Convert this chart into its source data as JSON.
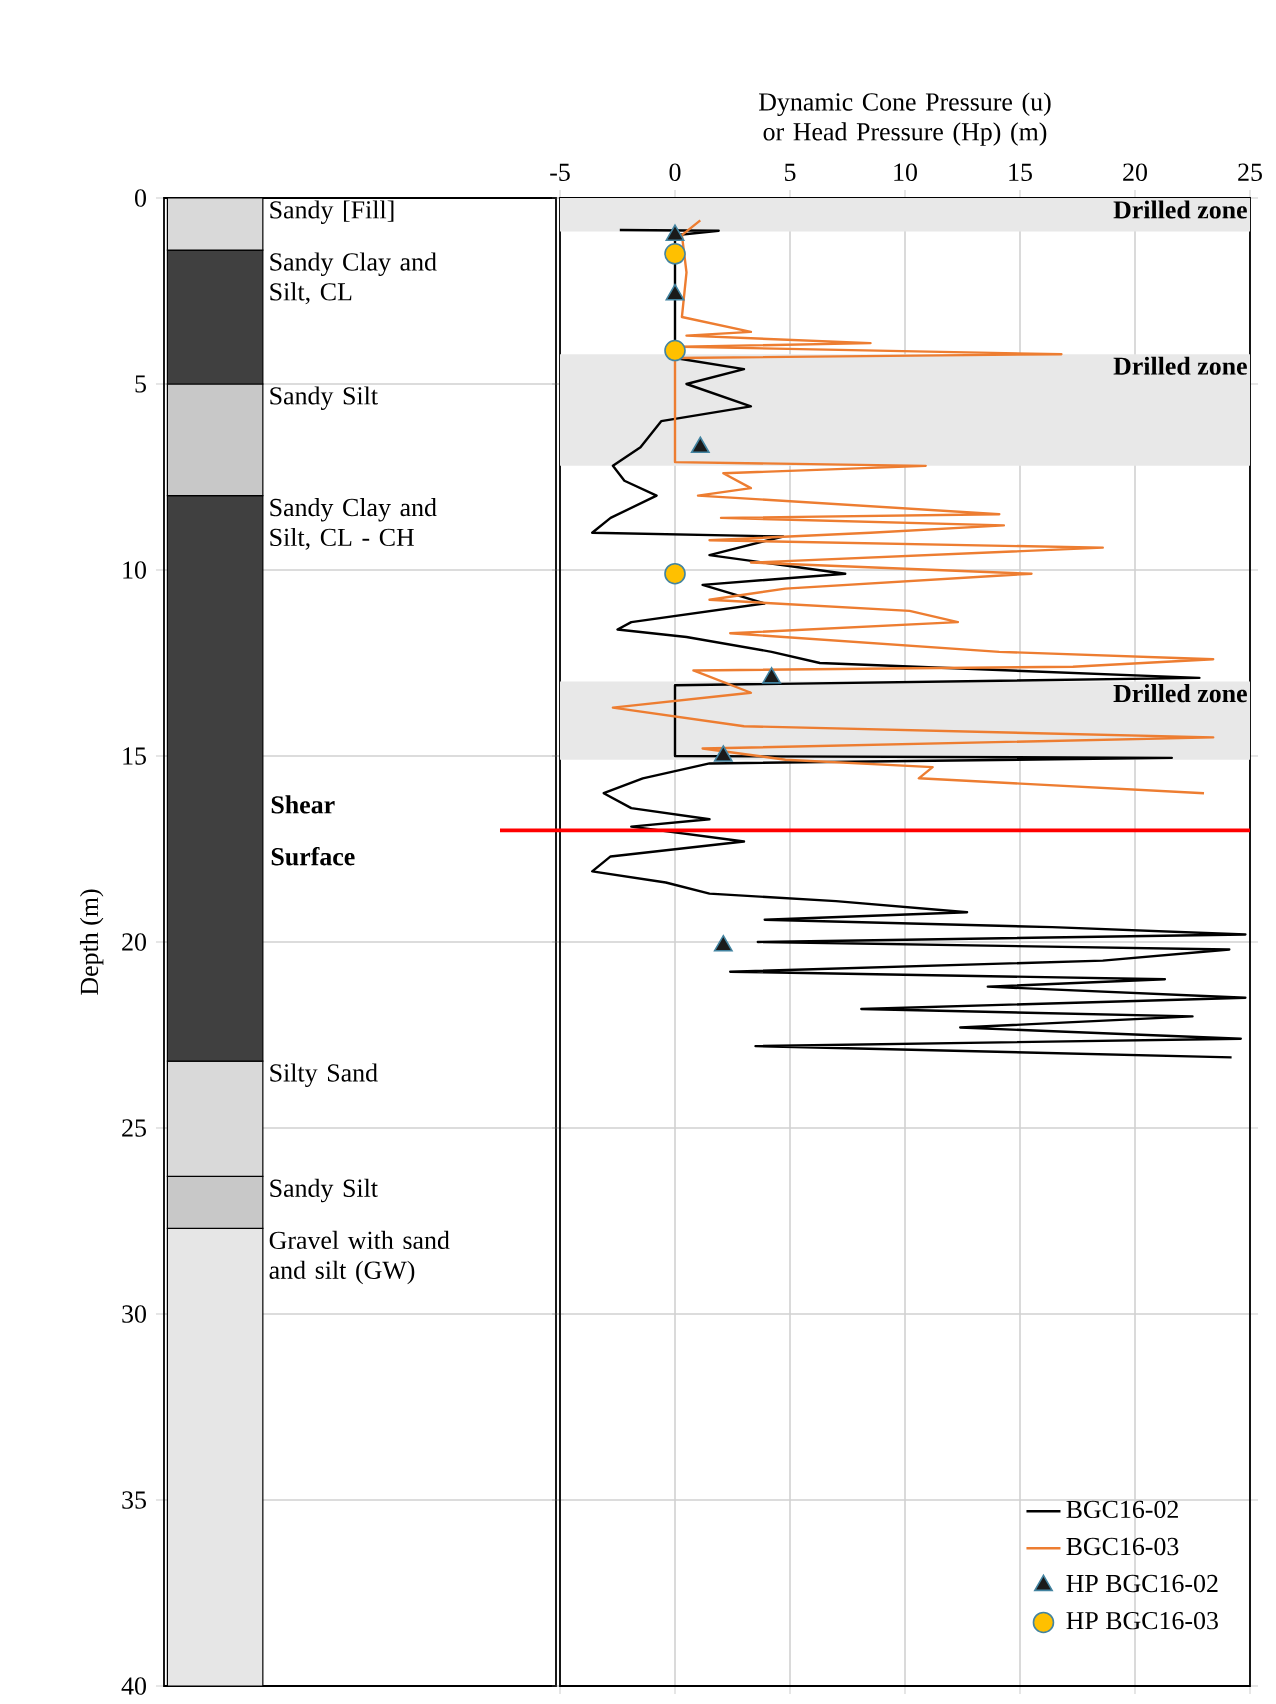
{
  "chart_data": [
    {
      "type": "bar",
      "stacked": true,
      "categories": [
        null
      ],
      "ylabel": "Depth (m)",
      "ylim": [
        40,
        0
      ],
      "yticks": [
        0,
        5,
        10,
        15,
        20,
        25,
        30,
        35,
        40
      ],
      "grid": "y",
      "tick_labels": "y",
      "series": [
        {
          "name": "Sandy [Fill]",
          "color": "#d9d9d9",
          "values": [
            1.4
          ]
        },
        {
          "name": "Sandy Clay and Silt, CL",
          "color": "#404040",
          "values": [
            3.6
          ]
        },
        {
          "name": "Sandy Silt",
          "color": "#c8c8c8",
          "values": [
            3.0
          ]
        },
        {
          "name": "Sandy Clay and Silt, CL - CH",
          "color": "#404040",
          "values": [
            15.2
          ]
        },
        {
          "name": "Silty Sand",
          "color": "#d9d9d9",
          "values": [
            3.1
          ]
        },
        {
          "name": "Sandy Silt",
          "color": "#c8c8c8",
          "values": [
            1.4
          ]
        },
        {
          "name": "Gravel with sand and silt (GW)",
          "color": "#e6e6e6",
          "values": [
            12.3
          ]
        }
      ]
    },
    {
      "type": "line",
      "xlabel": "Dynamic Cone Pressure (u) or Head Pressure (Hp) (m)",
      "xlim": [
        -5,
        25
      ],
      "xticks": [
        -5,
        0,
        5,
        10,
        15,
        20,
        25
      ],
      "ylim": [
        40,
        0
      ],
      "yticks": [
        0,
        5,
        10,
        15,
        20,
        25,
        30,
        35,
        40
      ],
      "grid": true,
      "tick_labels": "x",
      "legend": "bottom right",
      "bands": [
        {
          "axis": "y",
          "from": 0,
          "to": 0.9,
          "label": "Drilled zone",
          "color": "#e8e8e8"
        },
        {
          "axis": "y",
          "from": 4.2,
          "to": 7.2,
          "label": "Drilled zone",
          "color": "#e8e8e8"
        },
        {
          "axis": "y",
          "from": 13.0,
          "to": 15.1,
          "label": "Drilled zone",
          "color": "#e8e8e8"
        }
      ],
      "ref_lines": [
        {
          "axis": "y",
          "value": 17,
          "label": "Shear Surface",
          "color": "#ff0000"
        }
      ],
      "series": [
        {
          "name": "BGC16-02",
          "type": "line",
          "color": "#000000",
          "x": [
            -2.4,
            1.9,
            0,
            0,
            3.0,
            0.5,
            3.3,
            -0.6,
            -1.5,
            -2.7,
            -2.2,
            -0.8,
            -2.8,
            -3.6,
            4.7,
            1.5,
            7.4,
            1.2,
            3.9,
            -1.9,
            -2.5,
            0.5,
            4.2,
            6.3,
            22.8,
            0,
            0,
            21.6,
            1.5,
            -1.4,
            -3.1,
            -1.9,
            1.5,
            -1.9,
            3.0,
            -2.8,
            -3.6,
            -0.4,
            1.5,
            7.0,
            12.7,
            3.9,
            16.4,
            24.8,
            3.6,
            24.1,
            18.6,
            2.4,
            21.3,
            13.6,
            24.8,
            8.1,
            22.5,
            12.4,
            24.6,
            3.5,
            24.2
          ],
          "values": [
            0.86,
            0.88,
            1.0,
            4.3,
            4.6,
            5.0,
            5.6,
            6.0,
            6.7,
            7.2,
            7.6,
            8.0,
            8.6,
            9.0,
            9.1,
            9.6,
            10.1,
            10.4,
            10.9,
            11.4,
            11.6,
            11.8,
            12.2,
            12.5,
            12.9,
            13.1,
            15.0,
            15.05,
            15.2,
            15.6,
            16.0,
            16.4,
            16.7,
            16.9,
            17.3,
            17.7,
            18.1,
            18.4,
            18.7,
            18.9,
            19.2,
            19.4,
            19.6,
            19.8,
            20.0,
            20.2,
            20.5,
            20.8,
            21.0,
            21.2,
            21.5,
            21.8,
            22.0,
            22.3,
            22.6,
            22.8,
            23.1
          ]
        },
        {
          "name": "BGC16-03",
          "type": "line",
          "color": "#ed7d31",
          "x": [
            1.1,
            0.3,
            0.5,
            0.3,
            3.3,
            0.5,
            8.5,
            0.3,
            16.8,
            0,
            0,
            10.9,
            2.1,
            3.3,
            1.0,
            14.1,
            2.0,
            14.3,
            8.5,
            1.5,
            18.6,
            3.3,
            15.5,
            4.8,
            1.5,
            10.2,
            12.3,
            2.4,
            14.1,
            23.4,
            17.3,
            0.8,
            3.3,
            -2.7,
            3.0,
            23.4,
            1.2,
            4.8,
            11.2,
            10.6,
            23.0
          ],
          "values": [
            0.6,
            1.0,
            2.0,
            3.2,
            3.6,
            3.7,
            3.9,
            4.0,
            4.2,
            4.3,
            7.1,
            7.2,
            7.4,
            7.8,
            8.0,
            8.5,
            8.6,
            8.8,
            9.0,
            9.2,
            9.4,
            9.8,
            10.1,
            10.5,
            10.8,
            11.1,
            11.4,
            11.7,
            12.2,
            12.4,
            12.6,
            12.7,
            13.3,
            13.7,
            14.2,
            14.5,
            14.8,
            15.1,
            15.3,
            15.6,
            16.0
          ]
        },
        {
          "name": "HP BGC16-02",
          "type": "scatter",
          "marker": "triangle",
          "color": "#1a1a1a",
          "x": [
            0,
            0,
            1.1,
            4.2,
            2.1,
            2.1
          ],
          "values": [
            1.0,
            2.6,
            6.7,
            12.9,
            15.0,
            20.1
          ]
        },
        {
          "name": "HP BGC16-03",
          "type": "scatter",
          "marker": "circle",
          "color": "#ffc000",
          "x": [
            0,
            0,
            0
          ],
          "values": [
            1.5,
            4.1,
            10.1
          ]
        }
      ]
    }
  ]
}
